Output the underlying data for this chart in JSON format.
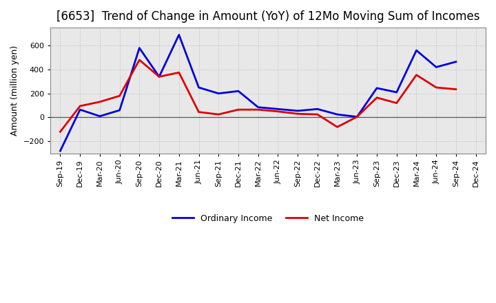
{
  "title": "[6653]  Trend of Change in Amount (YoY) of 12Mo Moving Sum of Incomes",
  "ylabel": "Amount (million yen)",
  "x_labels": [
    "Sep-19",
    "Dec-19",
    "Mar-20",
    "Jun-20",
    "Sep-20",
    "Dec-20",
    "Mar-21",
    "Jun-21",
    "Sep-21",
    "Dec-21",
    "Mar-22",
    "Jun-22",
    "Sep-22",
    "Dec-22",
    "Mar-23",
    "Jun-23",
    "Sep-23",
    "Dec-23",
    "Mar-24",
    "Jun-24",
    "Sep-24",
    "Dec-24"
  ],
  "ordinary_income": [
    -280,
    65,
    10,
    60,
    580,
    340,
    690,
    250,
    200,
    220,
    85,
    70,
    55,
    70,
    25,
    5,
    245,
    210,
    560,
    420,
    465,
    null
  ],
  "net_income": [
    -120,
    95,
    130,
    180,
    480,
    340,
    375,
    45,
    25,
    65,
    65,
    50,
    30,
    25,
    -80,
    5,
    165,
    120,
    355,
    250,
    235,
    null
  ],
  "ordinary_color": "#0000dd",
  "net_color": "#dd0000",
  "line_width": 2.0,
  "ylim": [
    -300,
    750
  ],
  "yticks": [
    -200,
    0,
    200,
    400,
    600
  ],
  "plot_bg_color": "#e8e8e8",
  "figure_bg_color": "#ffffff",
  "grid_color": "#bbbbbb",
  "zero_line_color": "#555555",
  "title_fontsize": 12,
  "axis_label_fontsize": 9,
  "tick_fontsize": 8,
  "legend_fontsize": 9
}
